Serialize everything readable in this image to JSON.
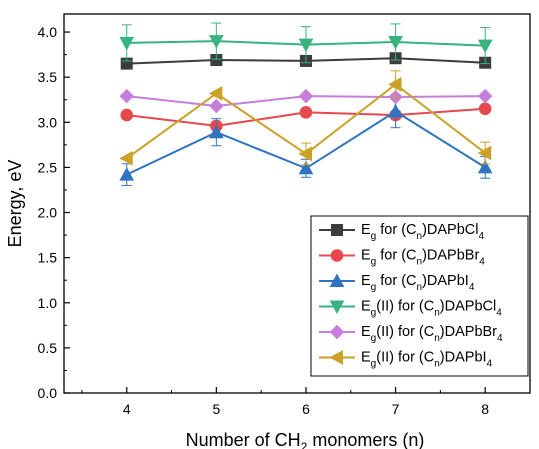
{
  "chart_data": {
    "type": "line",
    "title": "",
    "xlabel": {
      "pre": "Number of CH",
      "sub": "2",
      "post": " monomers (n)"
    },
    "ylabel": "Energy, eV",
    "x": [
      4,
      5,
      6,
      7,
      8
    ],
    "xlim": [
      3.3,
      8.5
    ],
    "ylim": [
      0.0,
      4.2
    ],
    "xticks": [
      "4",
      "5",
      "6",
      "7",
      "8"
    ],
    "yticks": [
      "0.0",
      "0.5",
      "1.0",
      "1.5",
      "2.0",
      "2.5",
      "3.0",
      "3.5",
      "4.0"
    ],
    "grid": false,
    "legend_position": "bottom-right",
    "series": [
      {
        "name": "Eg for (Cn)DAPbCl4",
        "label_parts": [
          [
            "E",
            ""
          ],
          [
            "g",
            "sub"
          ],
          [
            " for (C",
            ""
          ],
          [
            "n",
            "sub"
          ],
          [
            ")DAPbCl",
            ""
          ],
          [
            "4",
            "sub"
          ]
        ],
        "color": "#3c3c3c",
        "marker": "square",
        "values": [
          3.65,
          3.69,
          3.68,
          3.71,
          3.66
        ],
        "errors": [
          0.0,
          0.0,
          0.0,
          0.0,
          0.0
        ]
      },
      {
        "name": "Eg for (Cn)DAPbBr4",
        "label_parts": [
          [
            "E",
            ""
          ],
          [
            "g",
            "sub"
          ],
          [
            " for (C",
            ""
          ],
          [
            "n",
            "sub"
          ],
          [
            ")DAPbBr",
            ""
          ],
          [
            "4",
            "sub"
          ]
        ],
        "color": "#e5484d",
        "marker": "circle",
        "values": [
          3.08,
          2.96,
          3.11,
          3.08,
          3.15
        ],
        "errors": [
          0.0,
          0.0,
          0.0,
          0.0,
          0.0
        ]
      },
      {
        "name": "Eg for (Cn)DAPbI4",
        "label_parts": [
          [
            "E",
            ""
          ],
          [
            "g",
            "sub"
          ],
          [
            " for (C",
            ""
          ],
          [
            "n",
            "sub"
          ],
          [
            ")DAPbI",
            ""
          ],
          [
            "4",
            "sub"
          ]
        ],
        "color": "#2f74c0",
        "marker": "triangle-up",
        "values": [
          2.42,
          2.89,
          2.49,
          3.12,
          2.5
        ],
        "errors": [
          0.12,
          0.15,
          0.1,
          0.18,
          0.12
        ]
      },
      {
        "name": "Eg(II) for (Cn)DAPbCl4",
        "label_parts": [
          [
            "E",
            ""
          ],
          [
            "g",
            "sub"
          ],
          [
            "(II) for (C",
            ""
          ],
          [
            "n",
            "sub"
          ],
          [
            ")DAPbCl",
            ""
          ],
          [
            "4",
            "sub"
          ]
        ],
        "color": "#36b37e",
        "marker": "triangle-down",
        "values": [
          3.88,
          3.9,
          3.86,
          3.89,
          3.85
        ],
        "errors": [
          0.2,
          0.2,
          0.2,
          0.2,
          0.2
        ]
      },
      {
        "name": "Eg(II) for (Cn)DAPbBr4",
        "label_parts": [
          [
            "E",
            ""
          ],
          [
            "g",
            "sub"
          ],
          [
            "(II) for (C",
            ""
          ],
          [
            "n",
            "sub"
          ],
          [
            ")DAPbBr",
            ""
          ],
          [
            "4",
            "sub"
          ]
        ],
        "color": "#c77ddb",
        "marker": "diamond",
        "values": [
          3.29,
          3.18,
          3.29,
          3.28,
          3.29
        ],
        "errors": [
          0.0,
          0.0,
          0.0,
          0.0,
          0.0
        ]
      },
      {
        "name": "Eg(II) for (Cn)DAPbI4",
        "label_parts": [
          [
            "E",
            ""
          ],
          [
            "g",
            "sub"
          ],
          [
            "(II) for (C",
            ""
          ],
          [
            "n",
            "sub"
          ],
          [
            ")DAPbI",
            ""
          ],
          [
            "4",
            "sub"
          ]
        ],
        "color": "#c9a227",
        "marker": "triangle-left",
        "values": [
          2.6,
          3.32,
          2.65,
          3.42,
          2.66
        ],
        "errors": [
          0.0,
          0.0,
          0.12,
          0.15,
          0.12
        ]
      }
    ]
  }
}
